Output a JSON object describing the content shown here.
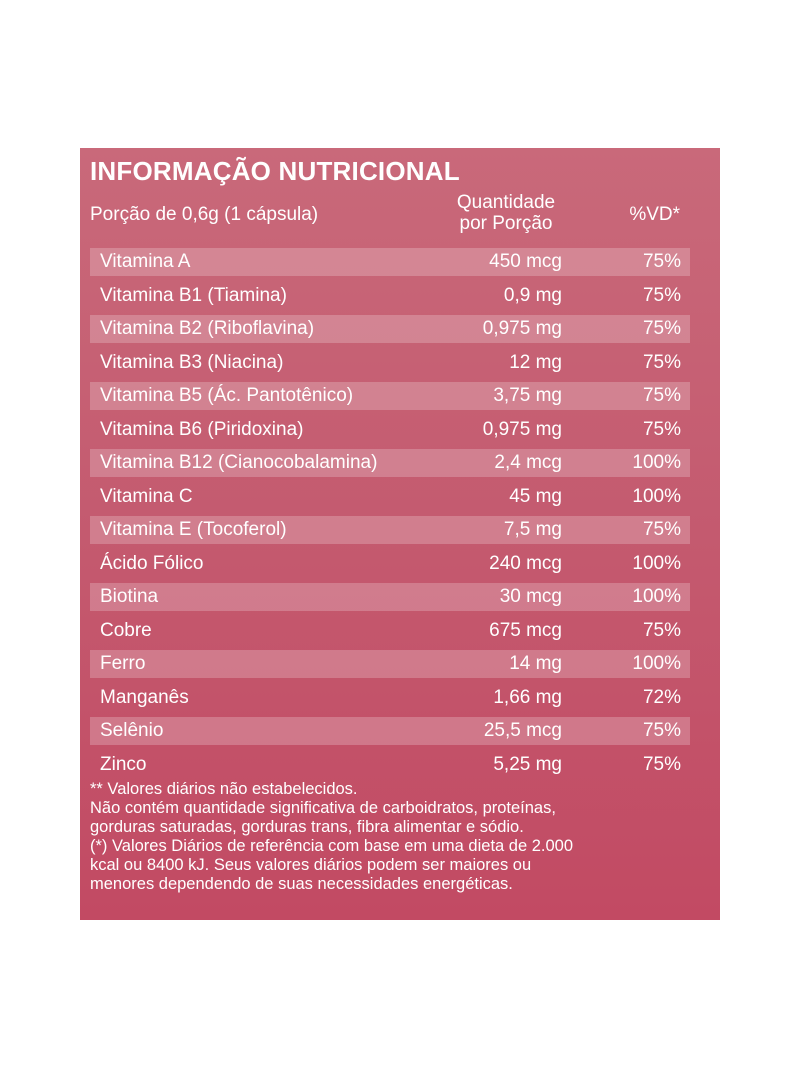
{
  "panel": {
    "title": "INFORMAÇÃO NUTRICIONAL",
    "serving": "Porção de 0,6g   (1 cápsula)",
    "qty_header_line1": "Quantidade",
    "qty_header_line2": "por Porção",
    "vd_header": "%VD*",
    "background_color": "#c45a6f"
  },
  "rows": [
    {
      "name": "Vitamina A",
      "qty": "450 mcg",
      "vd": "75%"
    },
    {
      "name": "Vitamina B1 (Tiamina)",
      "qty": "0,9 mg",
      "vd": "75%"
    },
    {
      "name": "Vitamina B2 (Riboflavina)",
      "qty": "0,975 mg",
      "vd": "75%"
    },
    {
      "name": "Vitamina B3 (Niacina)",
      "qty": "12 mg",
      "vd": "75%"
    },
    {
      "name": "Vitamina B5 (Ác. Pantotênico)",
      "qty": "3,75 mg",
      "vd": "75%"
    },
    {
      "name": "Vitamina B6 (Piridoxina)",
      "qty": "0,975 mg",
      "vd": "75%"
    },
    {
      "name": "Vitamina B12 (Cianocobalamina)",
      "qty": "2,4 mcg",
      "vd": "100%"
    },
    {
      "name": "Vitamina C",
      "qty": "45 mg",
      "vd": "100%"
    },
    {
      "name": "Vitamina E (Tocoferol)",
      "qty": "7,5 mg",
      "vd": "75%"
    },
    {
      "name": "Ácido Fólico",
      "qty": "240 mcg",
      "vd": "100%"
    },
    {
      "name": "Biotina",
      "qty": "30 mcg",
      "vd": "100%"
    },
    {
      "name": "Cobre",
      "qty": "675 mcg",
      "vd": "75%"
    },
    {
      "name": "Ferro",
      "qty": "14 mg",
      "vd": "100%"
    },
    {
      "name": "Manganês",
      "qty": "1,66 mg",
      "vd": "72%"
    },
    {
      "name": "Selênio",
      "qty": "25,5 mcg",
      "vd": "75%"
    },
    {
      "name": "Zinco",
      "qty": "5,25 mg",
      "vd": "75%"
    }
  ],
  "footnotes": [
    "** Valores  diários  não estabelecidos.",
    "Não contém quantidade significativa de carboidratos, proteínas,",
    "gorduras saturadas, gorduras trans, fibra alimentar e sódio.",
    "(*) Valores Diários de referência com base em uma dieta de 2.000",
    "kcal ou 8400 kJ. Seus valores diários podem ser maiores ou",
    "menores dependendo de suas necessidades energéticas."
  ]
}
